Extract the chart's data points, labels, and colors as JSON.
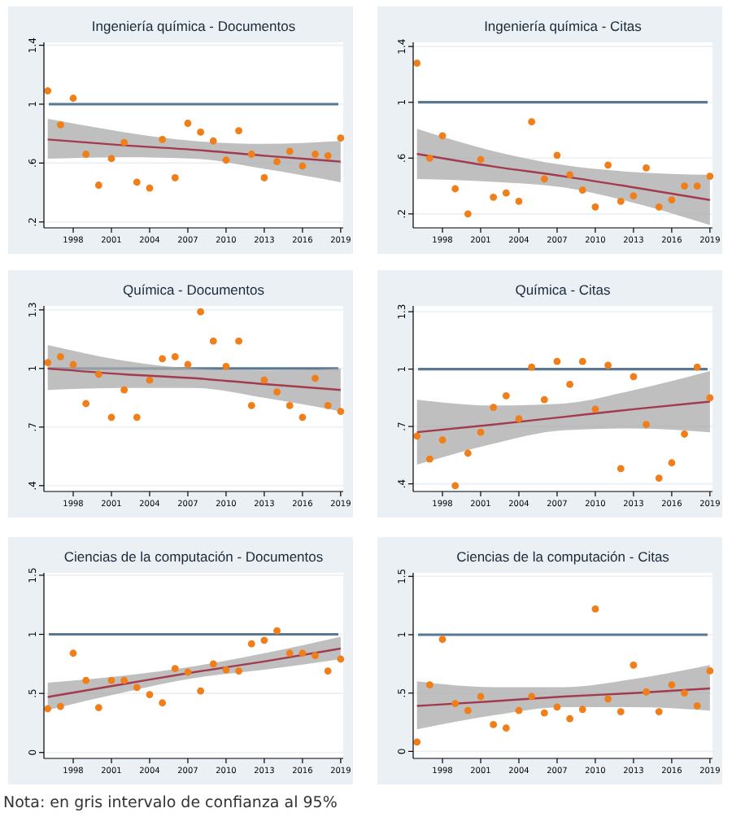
{
  "chart_data": [
    {
      "type": "scatter",
      "title": "Ingeniería química - Documentos",
      "x": [
        1996,
        1997,
        1998,
        1999,
        2000,
        2001,
        2002,
        2003,
        2004,
        2005,
        2006,
        2007,
        2008,
        2009,
        2010,
        2011,
        2012,
        2013,
        2014,
        2015,
        2016,
        2017,
        2018,
        2019
      ],
      "xlim": [
        1995.7,
        2019.2
      ],
      "xticks": [
        1998,
        2001,
        2004,
        2007,
        2010,
        2013,
        2016,
        2019
      ],
      "ylim": [
        0.16,
        1.42
      ],
      "yticks": [
        {
          "value": 0.2,
          "label": ".2"
        },
        {
          "value": 0.6,
          "label": ".6"
        },
        1,
        1.4
      ],
      "grid": "y",
      "ref_lines": [
        {
          "axis": "y",
          "value": 1,
          "color": "#5b7893"
        }
      ],
      "series": [
        {
          "marker": "circle",
          "color": "#f07f1a",
          "values": [
            1.09,
            0.86,
            1.04,
            0.66,
            0.45,
            0.63,
            0.74,
            0.47,
            0.43,
            0.76,
            0.5,
            0.87,
            0.81,
            0.75,
            0.62,
            0.82,
            0.66,
            0.5,
            0.61,
            0.68,
            0.58,
            0.66,
            0.65,
            0.77
          ]
        },
        {
          "type": "line",
          "marker": "none",
          "color": "#a33a4e",
          "x": [
            1996,
            2002,
            2007.5,
            2013,
            2019
          ],
          "values": [
            0.76,
            0.72,
            0.69,
            0.65,
            0.61
          ],
          "lower": [
            0.63,
            0.64,
            0.63,
            0.56,
            0.47
          ],
          "upper": [
            0.9,
            0.81,
            0.75,
            0.73,
            0.75
          ]
        }
      ]
    },
    {
      "type": "scatter",
      "title": "Ingeniería química - Citas",
      "x": [
        1996,
        1997,
        1998,
        1999,
        2000,
        2001,
        2002,
        2003,
        2004,
        2005,
        2006,
        2007,
        2008,
        2009,
        2010,
        2011,
        2012,
        2013,
        2014,
        2015,
        2016,
        2017,
        2018,
        2019
      ],
      "xlim": [
        1995.7,
        2019.2
      ],
      "xticks": [
        1998,
        2001,
        2004,
        2007,
        2010,
        2013,
        2016,
        2019
      ],
      "ylim": [
        0.1,
        1.43
      ],
      "yticks": [
        {
          "value": 0.2,
          "label": ".2"
        },
        {
          "value": 0.6,
          "label": ".6"
        },
        1,
        1.4
      ],
      "grid": "y",
      "ref_lines": [
        {
          "axis": "y",
          "value": 1,
          "color": "#5b7893"
        }
      ],
      "series": [
        {
          "marker": "circle",
          "color": "#f07f1a",
          "values": [
            1.28,
            0.6,
            0.76,
            0.38,
            0.2,
            0.59,
            0.32,
            0.35,
            0.29,
            0.86,
            0.45,
            0.62,
            0.48,
            0.37,
            0.25,
            0.55,
            0.29,
            0.33,
            0.53,
            0.25,
            0.3,
            0.4,
            0.4,
            0.47
          ]
        },
        {
          "type": "line",
          "marker": "none",
          "color": "#a33a4e",
          "x": [
            1996,
            2002,
            2007.5,
            2013,
            2019
          ],
          "values": [
            0.63,
            0.54,
            0.47,
            0.39,
            0.3
          ],
          "lower": [
            0.45,
            0.43,
            0.39,
            0.28,
            0.12
          ],
          "upper": [
            0.81,
            0.65,
            0.55,
            0.5,
            0.48
          ]
        }
      ]
    },
    {
      "type": "scatter",
      "title": "Química - Documentos",
      "x": [
        1996,
        1997,
        1998,
        1999,
        2000,
        2001,
        2002,
        2003,
        2004,
        2005,
        2006,
        2007,
        2008,
        2009,
        2010,
        2011,
        2012,
        2013,
        2014,
        2015,
        2016,
        2017,
        2018,
        2019
      ],
      "xlim": [
        1995.7,
        2019.2
      ],
      "xticks": [
        1998,
        2001,
        2004,
        2007,
        2010,
        2013,
        2016,
        2019
      ],
      "ylim": [
        0.37,
        1.32
      ],
      "yticks": [
        {
          "value": 0.4,
          "label": ".4"
        },
        {
          "value": 0.7,
          "label": ".7"
        },
        1,
        1.3
      ],
      "grid": "y",
      "ref_lines": [
        {
          "axis": "y",
          "value": 1,
          "color": "#5b7893"
        }
      ],
      "series": [
        {
          "marker": "circle",
          "color": "#f07f1a",
          "values": [
            1.03,
            1.06,
            1.02,
            0.82,
            0.97,
            0.75,
            0.89,
            0.75,
            0.94,
            1.05,
            1.06,
            1.02,
            1.29,
            1.14,
            1.01,
            1.14,
            0.81,
            0.94,
            0.88,
            0.81,
            0.75,
            0.95,
            0.81,
            0.78
          ]
        },
        {
          "type": "line",
          "marker": "none",
          "color": "#a33a4e",
          "x": [
            1996,
            2002,
            2007.5,
            2013,
            2019
          ],
          "values": [
            1.0,
            0.97,
            0.95,
            0.92,
            0.89
          ],
          "lower": [
            0.89,
            0.9,
            0.9,
            0.85,
            0.78
          ],
          "upper": [
            1.12,
            1.04,
            1.0,
            0.99,
            1.0
          ]
        }
      ]
    },
    {
      "type": "scatter",
      "title": "Química - Citas",
      "x": [
        1996,
        1997,
        1998,
        1999,
        2000,
        2001,
        2002,
        2003,
        2004,
        2005,
        2006,
        2007,
        2008,
        2009,
        2010,
        2011,
        2012,
        2013,
        2014,
        2015,
        2016,
        2017,
        2018,
        2019
      ],
      "xlim": [
        1995.7,
        2019.2
      ],
      "xticks": [
        1998,
        2001,
        2004,
        2007,
        2010,
        2013,
        2016,
        2019
      ],
      "ylim": [
        0.36,
        1.33
      ],
      "yticks": [
        {
          "value": 0.4,
          "label": ".4"
        },
        {
          "value": 0.7,
          "label": ".7"
        },
        1,
        1.3
      ],
      "grid": "y",
      "ref_lines": [
        {
          "axis": "y",
          "value": 1,
          "color": "#5b7893"
        }
      ],
      "series": [
        {
          "marker": "circle",
          "color": "#f07f1a",
          "values": [
            0.65,
            0.53,
            0.63,
            0.39,
            0.56,
            0.67,
            0.8,
            0.86,
            0.74,
            1.01,
            0.84,
            1.04,
            0.92,
            1.04,
            0.79,
            1.02,
            0.48,
            0.96,
            0.71,
            0.43,
            0.51,
            0.66,
            1.01,
            0.85
          ]
        },
        {
          "type": "line",
          "marker": "none",
          "color": "#a33a4e",
          "x": [
            1996,
            2002,
            2007.5,
            2013,
            2019
          ],
          "values": [
            0.67,
            0.71,
            0.75,
            0.79,
            0.83
          ],
          "lower": [
            0.5,
            0.61,
            0.68,
            0.69,
            0.67
          ],
          "upper": [
            0.84,
            0.81,
            0.82,
            0.89,
            0.99
          ]
        }
      ]
    },
    {
      "type": "scatter",
      "title": "Ciencias de la computación - Documentos",
      "x": [
        1996,
        1997,
        1998,
        1999,
        2000,
        2001,
        2002,
        2003,
        2004,
        2005,
        2006,
        2007,
        2008,
        2009,
        2010,
        2011,
        2012,
        2013,
        2014,
        2015,
        2016,
        2017,
        2018,
        2019
      ],
      "xlim": [
        1995.7,
        2019.2
      ],
      "xticks": [
        1998,
        2001,
        2004,
        2007,
        2010,
        2013,
        2016,
        2019
      ],
      "ylim": [
        -0.05,
        1.52
      ],
      "yticks": [
        0,
        {
          "value": 0.5,
          "label": ".5"
        },
        1,
        1.5
      ],
      "grid": "y",
      "ref_lines": [
        {
          "axis": "y",
          "value": 1,
          "color": "#5b7893"
        }
      ],
      "annotations": [
        "Nota: en gris intervalo de confianza al 95%"
      ],
      "series": [
        {
          "marker": "circle",
          "color": "#f07f1a",
          "values": [
            0.37,
            0.39,
            0.84,
            0.61,
            0.38,
            0.61,
            0.61,
            0.55,
            0.49,
            0.42,
            0.71,
            0.68,
            0.52,
            0.75,
            0.7,
            0.69,
            0.92,
            0.95,
            1.03,
            0.84,
            0.84,
            0.82,
            0.69,
            0.79
          ]
        },
        {
          "type": "line",
          "marker": "none",
          "color": "#a33a4e",
          "x": [
            1996,
            2002,
            2007.5,
            2013,
            2019
          ],
          "values": [
            0.47,
            0.58,
            0.68,
            0.77,
            0.88
          ],
          "lower": [
            0.36,
            0.51,
            0.63,
            0.7,
            0.79
          ],
          "upper": [
            0.59,
            0.65,
            0.73,
            0.84,
            0.98
          ]
        }
      ]
    },
    {
      "type": "scatter",
      "title": "Ciencias de la computación - Citas",
      "x": [
        1996,
        1997,
        1998,
        1999,
        2000,
        2001,
        2002,
        2003,
        2004,
        2005,
        2006,
        2007,
        2008,
        2009,
        2010,
        2011,
        2012,
        2013,
        2014,
        2015,
        2016,
        2017,
        2018,
        2019
      ],
      "xlim": [
        1995.7,
        2019.2
      ],
      "xticks": [
        1998,
        2001,
        2004,
        2007,
        2010,
        2013,
        2016,
        2019
      ],
      "ylim": [
        -0.06,
        1.53
      ],
      "yticks": [
        0,
        {
          "value": 0.5,
          "label": ".5"
        },
        1,
        1.5
      ],
      "grid": "y",
      "ref_lines": [
        {
          "axis": "y",
          "value": 1,
          "color": "#5b7893"
        }
      ],
      "series": [
        {
          "marker": "circle",
          "color": "#f07f1a",
          "values": [
            0.08,
            0.57,
            0.96,
            0.41,
            0.35,
            0.47,
            0.23,
            0.2,
            0.35,
            0.47,
            0.33,
            0.38,
            0.28,
            0.36,
            1.22,
            0.45,
            0.34,
            0.74,
            0.51,
            0.34,
            0.57,
            0.5,
            0.39,
            0.69
          ]
        },
        {
          "type": "line",
          "marker": "none",
          "color": "#a33a4e",
          "x": [
            1996,
            2002,
            2007.5,
            2013,
            2019
          ],
          "values": [
            0.39,
            0.43,
            0.47,
            0.5,
            0.54
          ],
          "lower": [
            0.19,
            0.31,
            0.38,
            0.38,
            0.35
          ],
          "upper": [
            0.6,
            0.55,
            0.55,
            0.62,
            0.74
          ]
        }
      ]
    }
  ]
}
